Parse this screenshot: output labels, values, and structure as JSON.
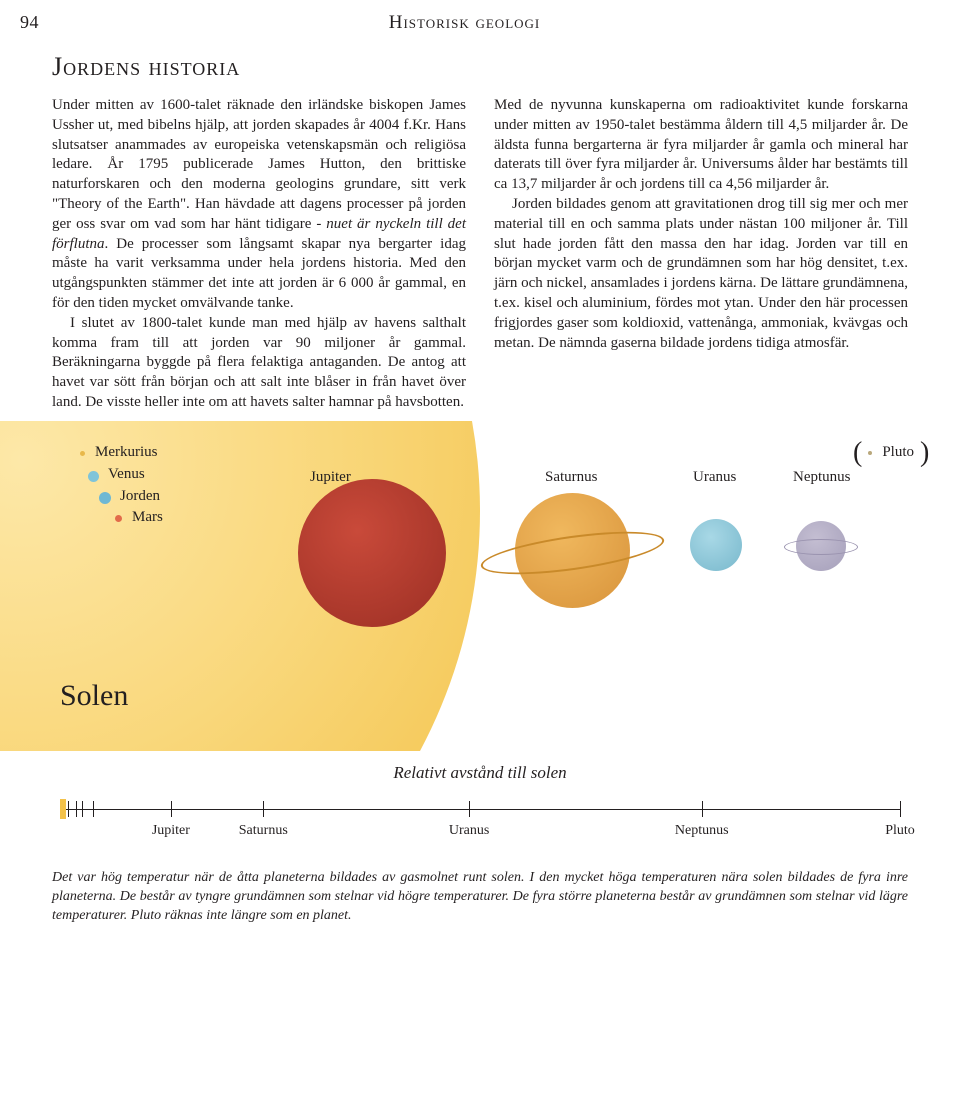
{
  "page_number": "94",
  "section_title": "Historisk geologi",
  "chapter_title": "Jordens historia",
  "body": {
    "left": {
      "p1": "Under mitten av 1600-talet räknade den irländske biskopen James Ussher ut, med bibelns hjälp, att jorden skapades år 4004 f.Kr. Hans slutsatser anammades av europeiska vetenskapsmän och religiösa ledare. År 1795 publicerade James Hutton, den brittiske naturforskaren och den moderna geologins grundare, sitt verk \"Theory of the Earth\". Han hävdade att dagens processer på jorden ger oss svar om vad som har hänt tidigare - ",
      "p1_italic": "nuet är nyckeln till det förflutna",
      "p1_tail": ". De processer som långsamt skapar nya bergarter idag måste ha varit verksamma under hela jordens historia. Med den utgångspunkten stämmer det inte att jorden är 6 000 år gammal, en för den tiden mycket omvälvande tanke.",
      "p2": "I slutet av 1800-talet kunde man med hjälp av havens salthalt komma fram till att jorden var 90 miljoner år gammal. Beräkningarna byggde på flera felaktiga antaganden. De antog att havet var sött från början och att salt inte blåser in från havet över land. De visste heller inte om att havets salter hamnar på havsbotten."
    },
    "right": {
      "p1": "Med de nyvunna kunskaperna om radioaktivitet kunde forskarna under mitten av 1950-talet bestämma åldern till 4,5 miljarder år. De äldsta funna bergarterna är fyra miljarder år gamla och mineral har daterats till över fyra miljarder år. Universums ålder har bestämts till ca 13,7 miljarder år och jordens till ca 4,56 miljarder år.",
      "p2": "Jorden bildades genom att gravitationen drog till sig mer och mer material till en och samma plats under nästan 100 miljoner år. Till slut hade jorden fått den massa den har idag. Jorden var till en början mycket varm och de grundämnen som har hög densitet, t.ex. järn och nickel, ansamlades i jordens kärna. De lättare grundämnena, t.ex. kisel och aluminium, fördes mot ytan. Under den här processen frigjordes gaser som koldioxid, vattenånga, ammoniak, kvävgas och metan. De nämnda gaserna bildade jordens tidiga atmosfär."
    }
  },
  "planets": {
    "sun_label": "Solen",
    "mercury": "Merkurius",
    "venus": "Venus",
    "earth": "Jorden",
    "mars": "Mars",
    "jupiter": "Jupiter",
    "saturn": "Saturnus",
    "uranus": "Uranus",
    "neptune": "Neptunus",
    "pluto": "Pluto",
    "colors": {
      "mercury": "#e8b84a",
      "venus": "#7fc4d9",
      "earth": "#6fb8d4",
      "mars": "#e26b4a",
      "jupiter": "#b0372a",
      "saturn": "#e9a94a",
      "saturn_ring": "#c98a2a",
      "uranus": "#8fcadd",
      "neptune": "#b7b1c9",
      "neptune_ring": "#9a93af",
      "pluto": "#b9a87c"
    }
  },
  "distance": {
    "title": "Relativt avstånd till solen",
    "ticks": [
      {
        "label": "Jupiter",
        "pct": 13.2
      },
      {
        "label": "Saturnus",
        "pct": 24.2
      },
      {
        "label": "Uranus",
        "pct": 48.7
      },
      {
        "label": "Neptunus",
        "pct": 76.4
      },
      {
        "label": "Pluto",
        "pct": 100
      }
    ],
    "inner_ticks_pct": [
      1.0,
      1.9,
      2.6,
      3.9
    ]
  },
  "caption": "Det var hög temperatur när de åtta planeterna bildades av gasmolnet runt solen. I den mycket höga temperaturen nära solen bildades de fyra inre planeterna. De består av tyngre grundämnen som stelnar vid högre temperaturer. De fyra större planeterna består av grundämnen som stelnar vid lägre temperaturer. Pluto räknas inte längre som en planet."
}
